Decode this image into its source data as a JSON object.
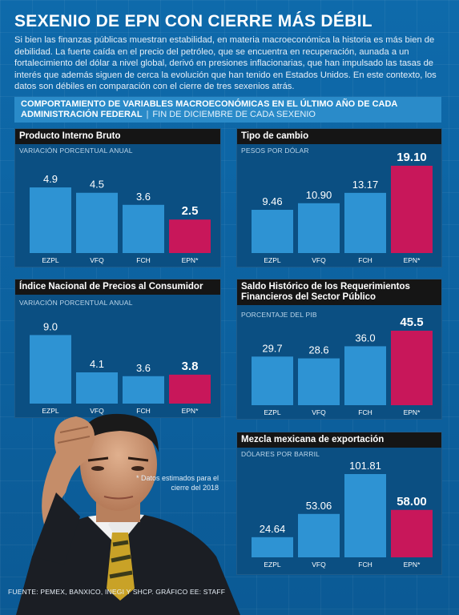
{
  "page": {
    "title": "SEXENIO DE EPN CON CIERRE MÁS DÉBIL",
    "intro": "Si bien las finanzas públicas muestran estabilidad, en materia macroeconómica la historia es más bien de debilidad. La fuerte caída en el precio del petróleo, que se encuentra en recuperación, aunada a un fortalecimiento del dólar a nivel global, derivó en presiones inflacionarias, que han impulsado las tasas de interés que además siguen de cerca la evolución que han tenido en Estados Unidos. En este contexto, los datos son débiles en comparación con el cierre de tres sexenios atrás.",
    "section_title": "COMPORTAMIENTO DE VARIABLES MACROECONÓMICAS EN EL ÚLTIMO AÑO DE CADA ADMINISTRACIÓN FEDERAL",
    "section_separator": "|",
    "section_subtitle": "FIN DE DICIEMBRE DE CADA SEXENIO",
    "footnote": "* Datos estimados para el cierre del 2018",
    "source": "FUENTE: PEMEX, BANXICO, INEGI Y SHCP. GRÁFICO EE: STAFF"
  },
  "colors": {
    "background": "#0d5f9c",
    "panel": "#0b4f82",
    "bar": "#2e93d3",
    "highlight": "#c8175a",
    "panel_header": "#151515",
    "section_header": "#2a8bc9"
  },
  "chart_data": [
    {
      "type": "bar",
      "title": "Producto Interno Bruto",
      "ylabel": "VARIACIÓN PORCENTUAL ANUAL",
      "categories": [
        "EZPL",
        "VFQ",
        "FCH",
        "EPN*"
      ],
      "values": [
        4.9,
        4.5,
        3.6,
        2.5
      ],
      "labels": [
        "4.9",
        "4.5",
        "3.6",
        "2.5"
      ],
      "highlight_index": 3,
      "ylim": [
        0,
        5.8
      ]
    },
    {
      "type": "bar",
      "title": "Tipo de cambio",
      "ylabel": "PESOS POR DÓLAR",
      "categories": [
        "EZPL",
        "VFQ",
        "FCH",
        "EPN*"
      ],
      "values": [
        9.46,
        10.9,
        13.17,
        19.1
      ],
      "labels": [
        "9.46",
        "10.90",
        "13.17",
        "19.10"
      ],
      "highlight_index": 3,
      "ylim": [
        0,
        19.1
      ]
    },
    {
      "type": "bar",
      "title": "Índice Nacional de Precios al Consumidor",
      "ylabel": "VARIACIÓN PORCENTUAL ANUAL",
      "categories": [
        "EZPL",
        "VFQ",
        "FCH",
        "EPN*"
      ],
      "values": [
        9.0,
        4.1,
        3.6,
        3.8
      ],
      "labels": [
        "9.0",
        "4.1",
        "3.6",
        "3.8"
      ],
      "highlight_index": 3,
      "ylim": [
        0,
        10.2
      ]
    },
    {
      "type": "bar",
      "title": "Saldo Histórico de los Requerimientos Financieros del Sector Público",
      "ylabel": "PORCENTAJE DEL PIB",
      "categories": [
        "EZPL",
        "VFQ",
        "FCH",
        "EPN*"
      ],
      "values": [
        29.7,
        28.6,
        36.0,
        45.5
      ],
      "labels": [
        "29.7",
        "28.6",
        "36.0",
        "45.5"
      ],
      "highlight_index": 3,
      "ylim": [
        0,
        45.5
      ]
    },
    {
      "type": "bar",
      "title": "Mezcla mexicana de exportación",
      "ylabel": "DÓLARES POR BARRIL",
      "categories": [
        "EZPL",
        "VFQ",
        "FCH",
        "EPN*"
      ],
      "values": [
        24.64,
        53.06,
        101.81,
        58.0
      ],
      "labels": [
        "24.64",
        "53.06",
        "101.81",
        "58.00"
      ],
      "highlight_index": 3,
      "ylim": [
        0,
        101.81
      ]
    }
  ]
}
